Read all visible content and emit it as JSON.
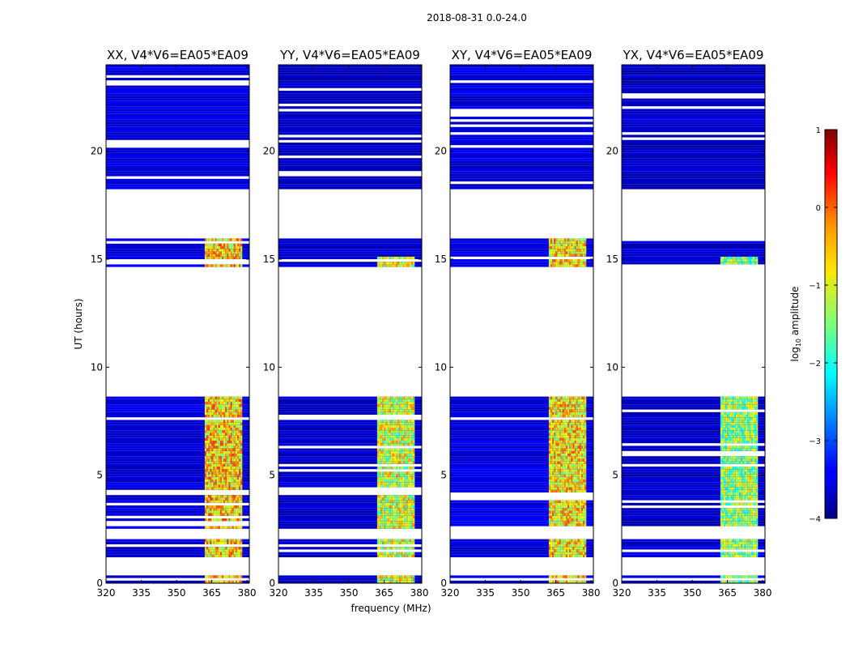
{
  "chart_data": {
    "type": "heatmap",
    "suptitle": "2018-08-31 0.0-24.0",
    "xlabel": "frequency (MHz)",
    "ylabel": "UT (hours)",
    "xlim": [
      320,
      381
    ],
    "ylim": [
      0,
      24
    ],
    "xticks": [
      320,
      335,
      350,
      365,
      380
    ],
    "yticks": [
      0,
      5,
      10,
      15,
      20
    ],
    "colorbar": {
      "label": "log10 amplitude",
      "label_base": "log",
      "label_sub": "10",
      "label_rest": " amplitude",
      "range": [
        -4,
        1
      ],
      "ticks": [
        "1",
        "0",
        "−1",
        "−2",
        "−3",
        "−4"
      ],
      "tick_values": [
        1,
        0,
        -1,
        -2,
        -3,
        -4
      ]
    },
    "data_gaps_ut_hours": [
      [
        0.4,
        1.2
      ],
      [
        2.1,
        2.5
      ],
      [
        8.6,
        14.6
      ],
      [
        16.0,
        18.2
      ]
    ],
    "rfi_band_mhz": [
      362,
      378
    ],
    "panels": [
      {
        "title": "XX, V4*V6=EA05*EA09",
        "rfi_level": -0.7,
        "background_level": -3.7
      },
      {
        "title": "YY, V4*V6=EA05*EA09",
        "rfi_level": -1.1,
        "background_level": -3.8
      },
      {
        "title": "XY, V4*V6=EA05*EA09",
        "rfi_level": -0.8,
        "background_level": -3.7
      },
      {
        "title": "YX, V4*V6=EA05*EA09",
        "rfi_level": -1.4,
        "background_level": -3.8
      }
    ]
  }
}
